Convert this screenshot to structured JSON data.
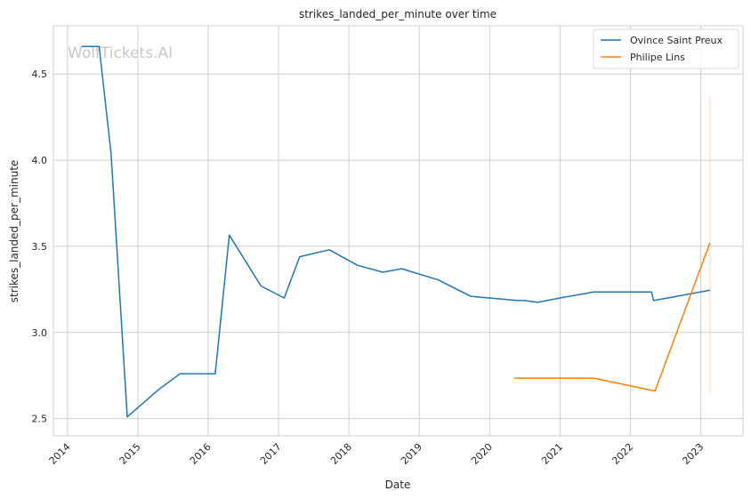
{
  "chart_data": {
    "type": "line",
    "title": "strikes_landed_per_minute over time",
    "xlabel": "Date",
    "ylabel": "strikes_landed_per_minute",
    "xlim": [
      2013.8,
      2023.6
    ],
    "ylim": [
      2.4,
      4.78
    ],
    "xticks": [
      2014,
      2015,
      2016,
      2017,
      2018,
      2019,
      2020,
      2021,
      2022,
      2023
    ],
    "yticks": [
      2.5,
      3.0,
      3.5,
      4.0,
      4.5
    ],
    "grid": true,
    "legend_position": "top-right",
    "watermark": "WolfTickets.AI",
    "series": [
      {
        "name": "Ovince Saint Preux",
        "color": "#1f77b4",
        "x": [
          2014.2,
          2014.45,
          2014.62,
          2014.85,
          2015.3,
          2015.6,
          2016.1,
          2016.3,
          2016.75,
          2017.08,
          2017.3,
          2017.72,
          2018.12,
          2018.48,
          2018.75,
          2019.27,
          2019.73,
          2020.4,
          2020.5,
          2020.68,
          2021.0,
          2021.48,
          2022.3,
          2022.33,
          2023.13
        ],
        "y": [
          4.66,
          4.66,
          4.04,
          2.51,
          2.67,
          2.76,
          2.76,
          3.565,
          3.27,
          3.2,
          3.44,
          3.48,
          3.39,
          3.35,
          3.37,
          3.305,
          3.21,
          3.185,
          3.185,
          3.175,
          3.2,
          3.235,
          3.235,
          3.185,
          3.245
        ]
      },
      {
        "name": "Philipe Lins",
        "color": "#ff7f0e",
        "x": [
          2020.35,
          2021.48,
          2022.35,
          2023.13
        ],
        "y": [
          2.735,
          2.735,
          2.66,
          3.52
        ],
        "range_band": {
          "x": 2023.13,
          "y_min": 2.65,
          "y_max": 4.37
        }
      }
    ]
  }
}
